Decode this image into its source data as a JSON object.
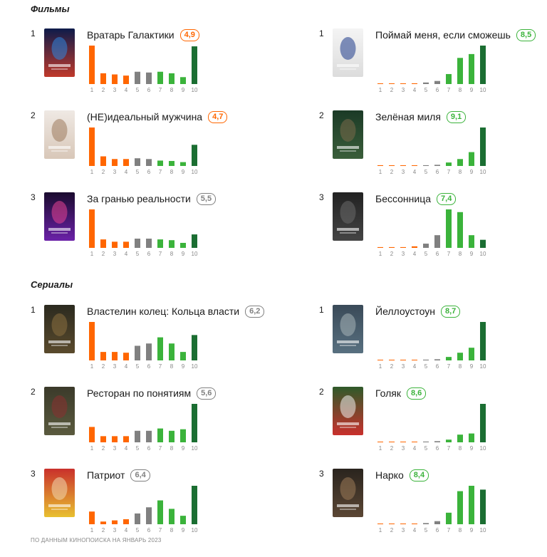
{
  "colors": {
    "low": "#ff6600",
    "mid": "#808080",
    "high": "#3bb33b",
    "top": "#1b6e32",
    "badge_low": "#ff6600",
    "badge_mid": "#808080",
    "badge_high": "#3bb33b",
    "tick_text": "#888888",
    "baseline": "#dddddd"
  },
  "sections": [
    {
      "title": "Фильмы"
    },
    {
      "title": "Сериалы"
    }
  ],
  "footnote": "ПО ДАННЫМ КИНОПОИСКА НА ЯНВАРЬ 2023",
  "chart_data": [
    {
      "type": "bar",
      "section": "Фильмы",
      "rank": "1",
      "title": "Вратарь Галактики",
      "rating": "4,9",
      "rating_color": "low",
      "poster": "Вратарь Галактики poster",
      "categories": [
        "1",
        "2",
        "3",
        "4",
        "5",
        "6",
        "7",
        "8",
        "9",
        "10"
      ],
      "values": [
        100,
        28,
        25,
        22,
        32,
        30,
        32,
        28,
        18,
        98
      ]
    },
    {
      "type": "bar",
      "section": "Фильмы",
      "rank": "1",
      "title": "Поймай меня, если сможешь",
      "rating": "8,5",
      "rating_color": "high",
      "poster": "Поймай меня poster",
      "categories": [
        "1",
        "2",
        "3",
        "4",
        "5",
        "6",
        "7",
        "8",
        "9",
        "10"
      ],
      "values": [
        1,
        1,
        1,
        2,
        4,
        8,
        26,
        68,
        78,
        100
      ]
    },
    {
      "type": "bar",
      "section": "Фильмы",
      "rank": "2",
      "title": "(НЕ)идеальный мужчина",
      "rating": "4,7",
      "rating_color": "low",
      "poster": "(НЕ)идеальный мужчина poster",
      "categories": [
        "1",
        "2",
        "3",
        "4",
        "5",
        "6",
        "7",
        "8",
        "9",
        "10"
      ],
      "values": [
        100,
        25,
        18,
        18,
        20,
        18,
        14,
        13,
        10,
        55
      ]
    },
    {
      "type": "bar",
      "section": "Фильмы",
      "rank": "2",
      "title": "Зелёная миля",
      "rating": "9,1",
      "rating_color": "high",
      "poster": "Зелёная миля poster",
      "categories": [
        "1",
        "2",
        "3",
        "4",
        "5",
        "6",
        "7",
        "8",
        "9",
        "10"
      ],
      "values": [
        2,
        1,
        1,
        1,
        2,
        3,
        9,
        18,
        36,
        100
      ]
    },
    {
      "type": "bar",
      "section": "Фильмы",
      "rank": "3",
      "title": "За гранью реальности",
      "rating": "5,5",
      "rating_color": "mid",
      "poster": "За гранью реальности poster",
      "categories": [
        "1",
        "2",
        "3",
        "4",
        "5",
        "6",
        "7",
        "8",
        "9",
        "10"
      ],
      "values": [
        100,
        22,
        16,
        16,
        24,
        24,
        22,
        20,
        13,
        35
      ]
    },
    {
      "type": "bar",
      "section": "Фильмы",
      "rank": "3",
      "title": "Бессонница",
      "rating": "7,4",
      "rating_color": "high",
      "poster": "Бессонница poster",
      "categories": [
        "1",
        "2",
        "3",
        "4",
        "5",
        "6",
        "7",
        "8",
        "9",
        "10"
      ],
      "values": [
        2,
        2,
        2,
        4,
        11,
        33,
        100,
        93,
        33,
        21
      ]
    },
    {
      "type": "bar",
      "section": "Сериалы",
      "rank": "1",
      "title": "Властелин колец: Кольца власти",
      "rating": "6,2",
      "rating_color": "mid",
      "poster": "Кольца власти poster",
      "categories": [
        "1",
        "2",
        "3",
        "4",
        "5",
        "6",
        "7",
        "8",
        "9",
        "10"
      ],
      "values": [
        100,
        22,
        22,
        20,
        38,
        44,
        60,
        44,
        22,
        66
      ]
    },
    {
      "type": "bar",
      "section": "Сериалы",
      "rank": "1",
      "title": "Йеллоустоун",
      "rating": "8,7",
      "rating_color": "high",
      "poster": "Йеллоустоун poster",
      "categories": [
        "1",
        "2",
        "3",
        "4",
        "5",
        "6",
        "7",
        "8",
        "9",
        "10"
      ],
      "values": [
        1,
        1,
        1,
        1,
        2,
        3,
        9,
        20,
        33,
        100
      ]
    },
    {
      "type": "bar",
      "section": "Сериалы",
      "rank": "2",
      "title": "Ресторан по понятиям",
      "rating": "5,6",
      "rating_color": "mid",
      "poster": "Ресторан по понятиям poster",
      "categories": [
        "1",
        "2",
        "3",
        "4",
        "5",
        "6",
        "7",
        "8",
        "9",
        "10"
      ],
      "values": [
        40,
        16,
        16,
        16,
        30,
        30,
        36,
        30,
        34,
        100
      ]
    },
    {
      "type": "bar",
      "section": "Сериалы",
      "rank": "2",
      "title": "Голяк",
      "rating": "8,6",
      "rating_color": "high",
      "poster": "Голяк poster",
      "categories": [
        "1",
        "2",
        "3",
        "4",
        "5",
        "6",
        "7",
        "8",
        "9",
        "10"
      ],
      "values": [
        1,
        1,
        1,
        1,
        2,
        3,
        7,
        20,
        23,
        100
      ]
    },
    {
      "type": "bar",
      "section": "Сериалы",
      "rank": "3",
      "title": "Патриот",
      "rating": "6,4",
      "rating_color": "mid",
      "poster": "Патриот poster",
      "categories": [
        "1",
        "2",
        "3",
        "4",
        "5",
        "6",
        "7",
        "8",
        "9",
        "10"
      ],
      "values": [
        33,
        7,
        10,
        13,
        28,
        44,
        62,
        40,
        22,
        100
      ]
    },
    {
      "type": "bar",
      "section": "Сериалы",
      "rank": "3",
      "title": "Нарко",
      "rating": "8,4",
      "rating_color": "high",
      "poster": "Нарко poster",
      "categories": [
        "1",
        "2",
        "3",
        "4",
        "5",
        "6",
        "7",
        "8",
        "9",
        "10"
      ],
      "values": [
        1,
        1,
        1,
        1,
        3,
        8,
        30,
        86,
        100,
        90
      ]
    }
  ]
}
